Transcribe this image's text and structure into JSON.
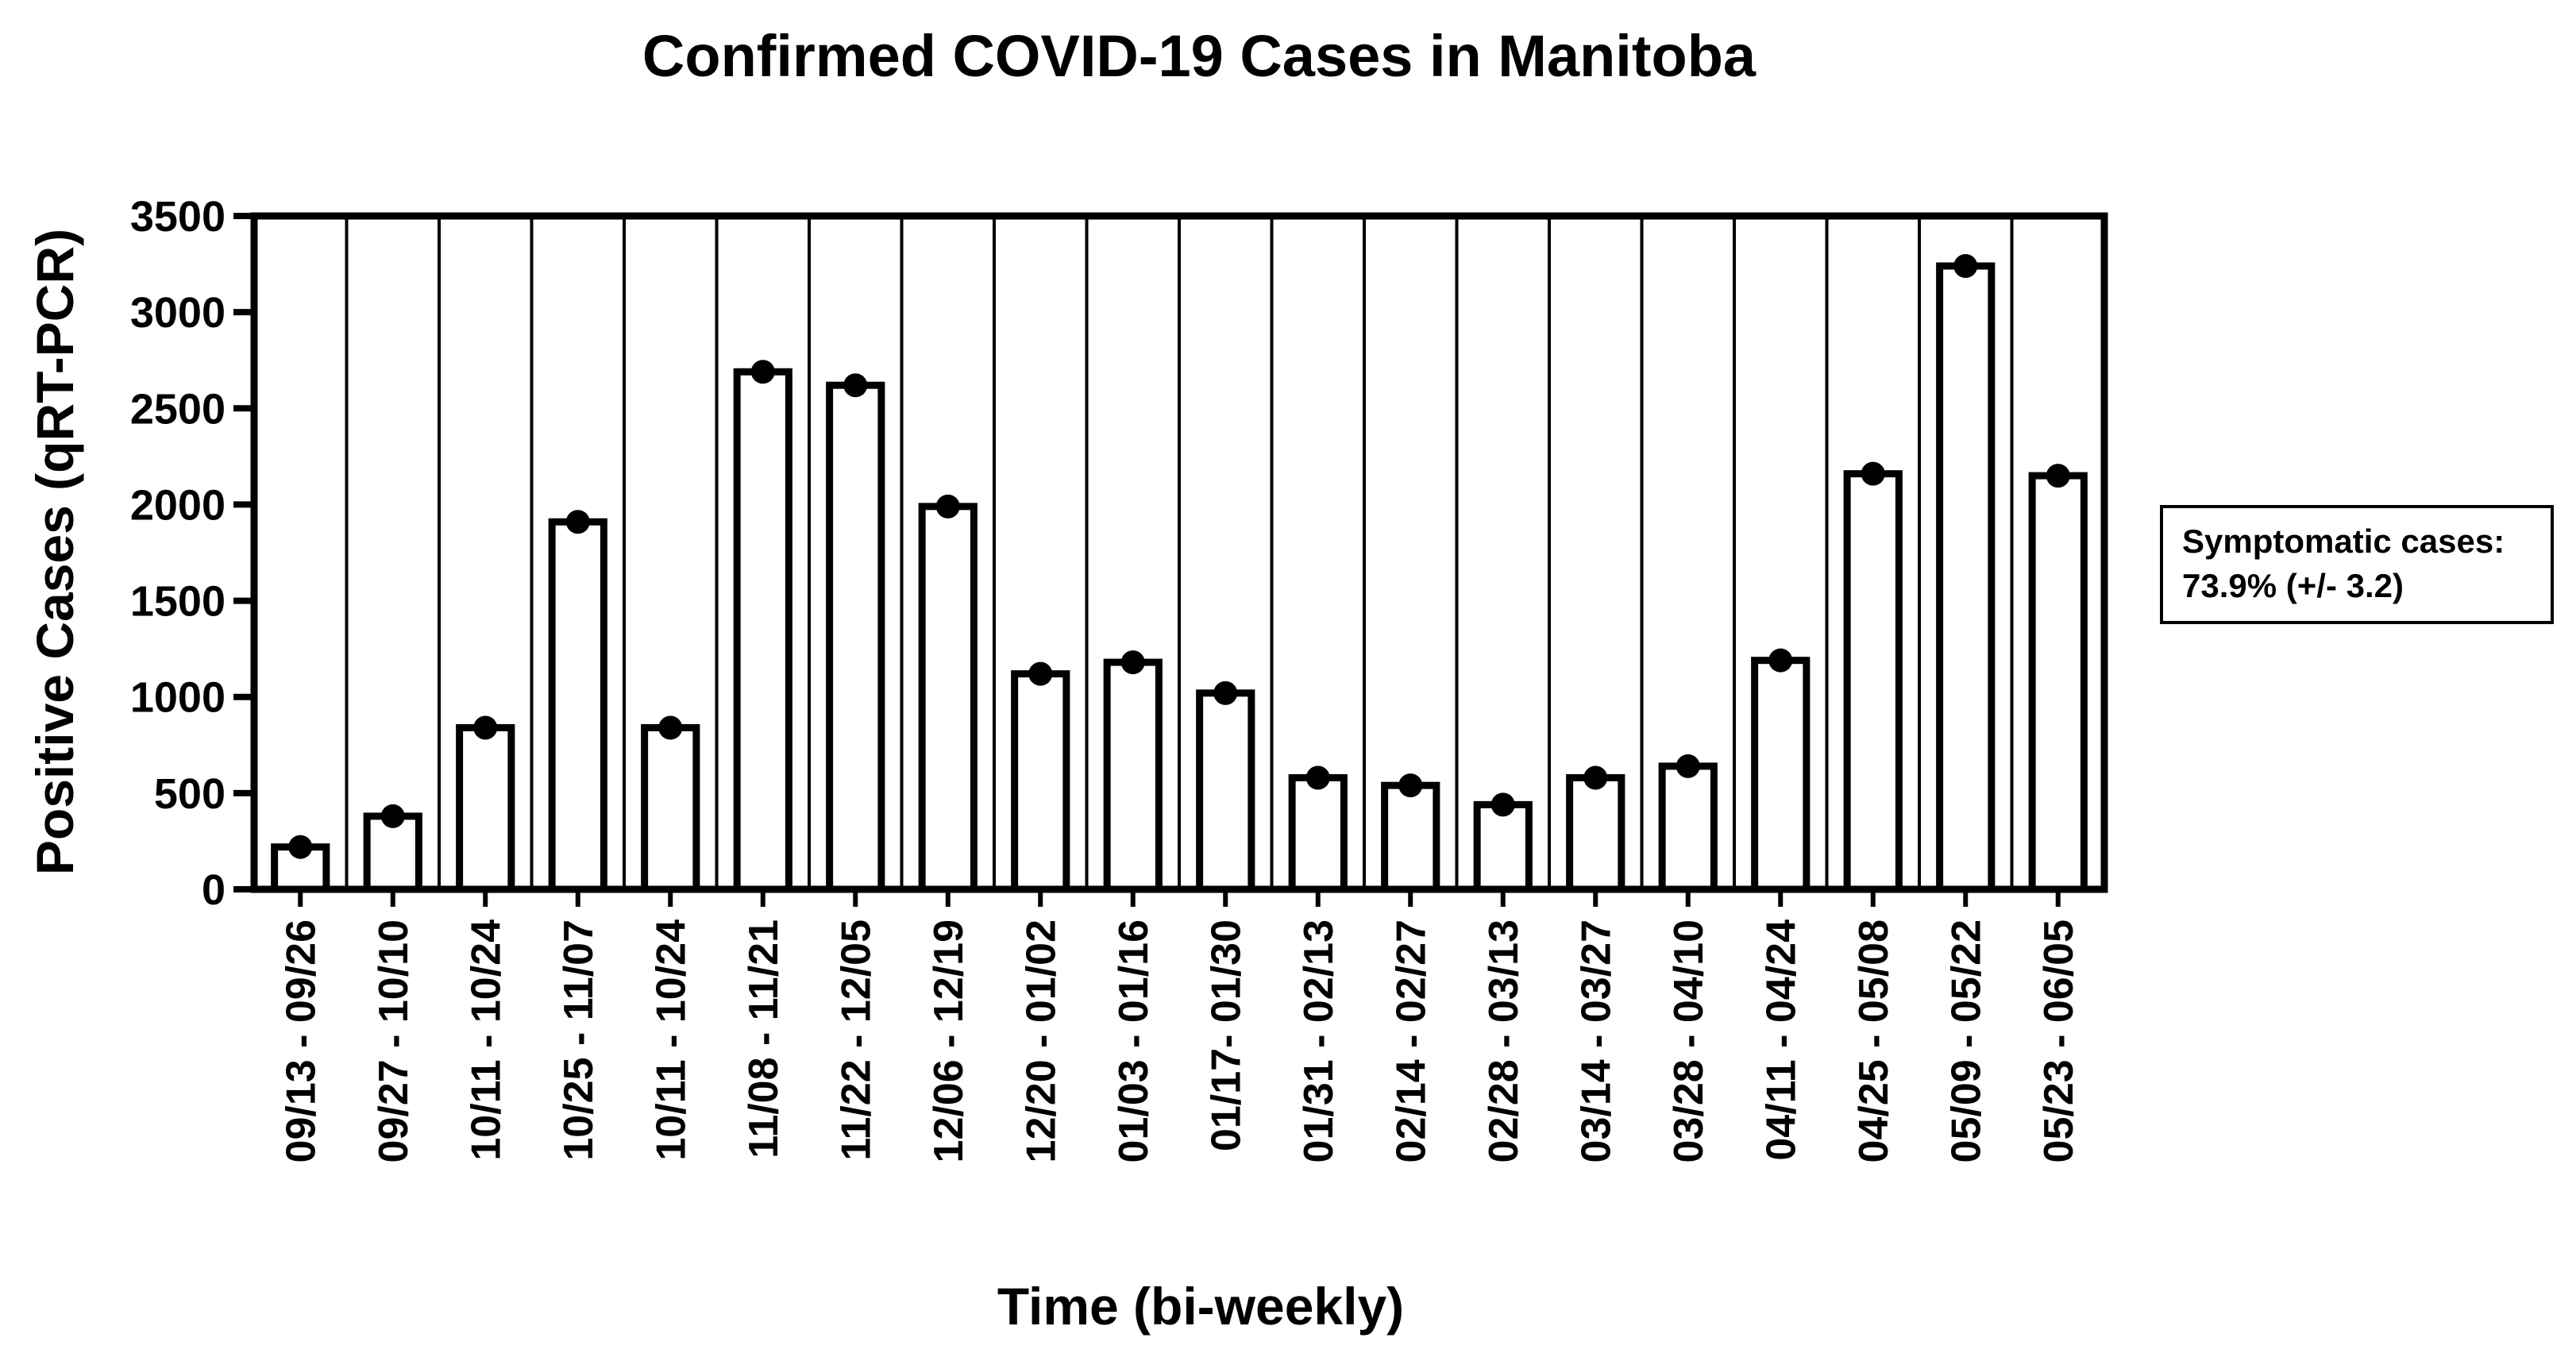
{
  "chart_data": {
    "type": "bar",
    "title": "Confirmed COVID-19 Cases in Manitoba",
    "xlabel": "Time (bi-weekly)",
    "ylabel": "Positive Cases (qRT-PCR)",
    "ylim": [
      0,
      3500
    ],
    "yticks": [
      0,
      500,
      1000,
      1500,
      2000,
      2500,
      3000,
      3500
    ],
    "grid": false,
    "categories": [
      "09/13 - 09/26",
      "09/27 - 10/10",
      "10/11 - 10/24",
      "10/25 - 11/07",
      "10/11 - 10/24",
      "11/08 - 11/21",
      "11/22 - 12/05",
      "12/06 - 12/19",
      "12/20 - 01/02",
      "01/03 - 01/16",
      "01/17- 01/30",
      "01/31 - 02/13",
      "02/14 - 02/27",
      "02/28 - 03/13",
      "03/14 - 03/27",
      "03/28 - 04/10",
      "04/11 - 04/24",
      "04/25 - 05/08",
      "05/09 - 05/22",
      "05/23 - 06/05"
    ],
    "values": [
      220,
      380,
      840,
      1910,
      840,
      2690,
      2620,
      1990,
      1120,
      1180,
      1020,
      580,
      540,
      440,
      580,
      640,
      1190,
      2160,
      3240,
      2150
    ],
    "annotations": [
      {
        "text": "Symptomatic cases:",
        "position": "right"
      },
      {
        "text": "73.9% (+/- 3.2)",
        "position": "right"
      }
    ]
  }
}
